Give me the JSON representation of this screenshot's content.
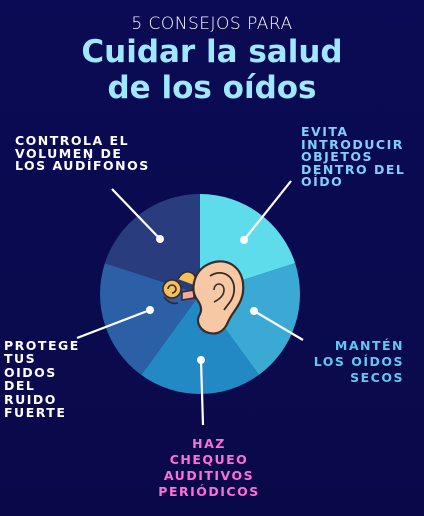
{
  "header": {
    "subtitle": "5 CONSEJOS PARA",
    "title_line1": "Cuidar la salud",
    "title_line2": "de los oídos"
  },
  "tips": {
    "volume": [
      "CONTROLA EL",
      "VOLUMEN DE",
      "LOS AUDÍFONOS"
    ],
    "objects": [
      "EVITA",
      "INTRODUCIR",
      "OBJETOS",
      "DENTRO DEL",
      "OÍDO"
    ],
    "dry": [
      "MANTÉN",
      "LOS OÍDOS",
      "SECOS"
    ],
    "checkups": [
      "HAZ",
      "CHEQUEO",
      "AUDITIVOS",
      "PERIÓDICOS"
    ],
    "protect": [
      "PROTEGE",
      "TUS",
      "OIDOS",
      "DEL",
      "RUIDO",
      "FUERTE"
    ]
  },
  "colors": {
    "background": "#0a0a4e",
    "title": "#9fe8ff",
    "segment_objects": "#5fdcec",
    "segment_dry": "#3aa9d4",
    "segment_checkups": "#2389c4",
    "segment_protect": "#2b5fa6",
    "segment_volume": "#283c7e",
    "checkups_text": "#ff6fd8",
    "objects_text": "#7fd0ff",
    "dry_text": "#62c8f0"
  },
  "icons": {
    "center": "ear-anatomy-icon"
  }
}
